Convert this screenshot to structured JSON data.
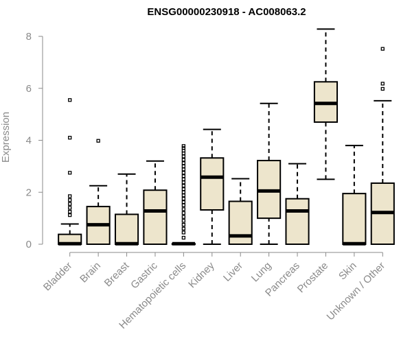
{
  "chart_data": {
    "type": "boxplot",
    "title": "ENSG00000230918 - AC008063.2",
    "xlabel": "",
    "ylabel": "Expression",
    "ylim": [
      0,
      8
    ],
    "yticks": [
      0,
      2,
      4,
      6,
      8
    ],
    "grid": false,
    "box_color": "#ede5cc",
    "categories": [
      "Bladder",
      "Brain",
      "Breast",
      "Gastric",
      "Hematopoietic cells",
      "Kidney",
      "Liver",
      "Lung",
      "Pancreas",
      "Prostate",
      "Skin",
      "Unknown / Other"
    ],
    "boxes": [
      {
        "min": 0,
        "q1": 0,
        "median": 0.02,
        "q3": 0.38,
        "max": 0.78,
        "outliers": [
          1.12,
          1.25,
          1.4,
          1.55,
          1.7,
          1.85,
          2.75,
          4.1,
          5.55
        ]
      },
      {
        "min": 0,
        "q1": 0,
        "median": 0.75,
        "q3": 1.45,
        "max": 2.25,
        "outliers": [
          3.98
        ]
      },
      {
        "min": 0,
        "q1": 0,
        "median": 0.02,
        "q3": 1.15,
        "max": 2.7,
        "outliers": []
      },
      {
        "min": 0,
        "q1": 0,
        "median": 1.28,
        "q3": 2.08,
        "max": 3.2,
        "outliers": []
      },
      {
        "min": 0,
        "q1": 0,
        "median": 0.02,
        "q3": 0.02,
        "max": 0.05,
        "outliers": [
          0.25,
          0.45,
          0.6,
          0.75,
          0.9,
          1.05,
          1.2,
          1.35,
          1.5,
          1.62,
          1.75,
          1.88,
          2.0,
          2.12,
          2.25,
          2.38,
          2.5,
          2.62,
          2.75,
          2.88,
          3.0,
          3.12,
          3.25,
          3.38,
          3.5,
          3.6,
          3.7,
          3.78
        ]
      },
      {
        "min": 0,
        "q1": 1.32,
        "median": 2.58,
        "q3": 3.32,
        "max": 4.42,
        "outliers": []
      },
      {
        "min": 0,
        "q1": 0,
        "median": 0.32,
        "q3": 1.65,
        "max": 2.52,
        "outliers": []
      },
      {
        "min": 0,
        "q1": 1.0,
        "median": 2.05,
        "q3": 3.22,
        "max": 5.42,
        "outliers": []
      },
      {
        "min": 0,
        "q1": 0,
        "median": 1.28,
        "q3": 1.75,
        "max": 3.1,
        "outliers": []
      },
      {
        "min": 2.5,
        "q1": 4.7,
        "median": 5.42,
        "q3": 6.25,
        "max": 8.28,
        "outliers": []
      },
      {
        "min": 0,
        "q1": 0,
        "median": 0.02,
        "q3": 1.95,
        "max": 3.8,
        "outliers": []
      },
      {
        "min": 0,
        "q1": 0,
        "median": 1.22,
        "q3": 2.35,
        "max": 5.52,
        "outliers": [
          5.98,
          6.18,
          7.52
        ]
      }
    ]
  }
}
